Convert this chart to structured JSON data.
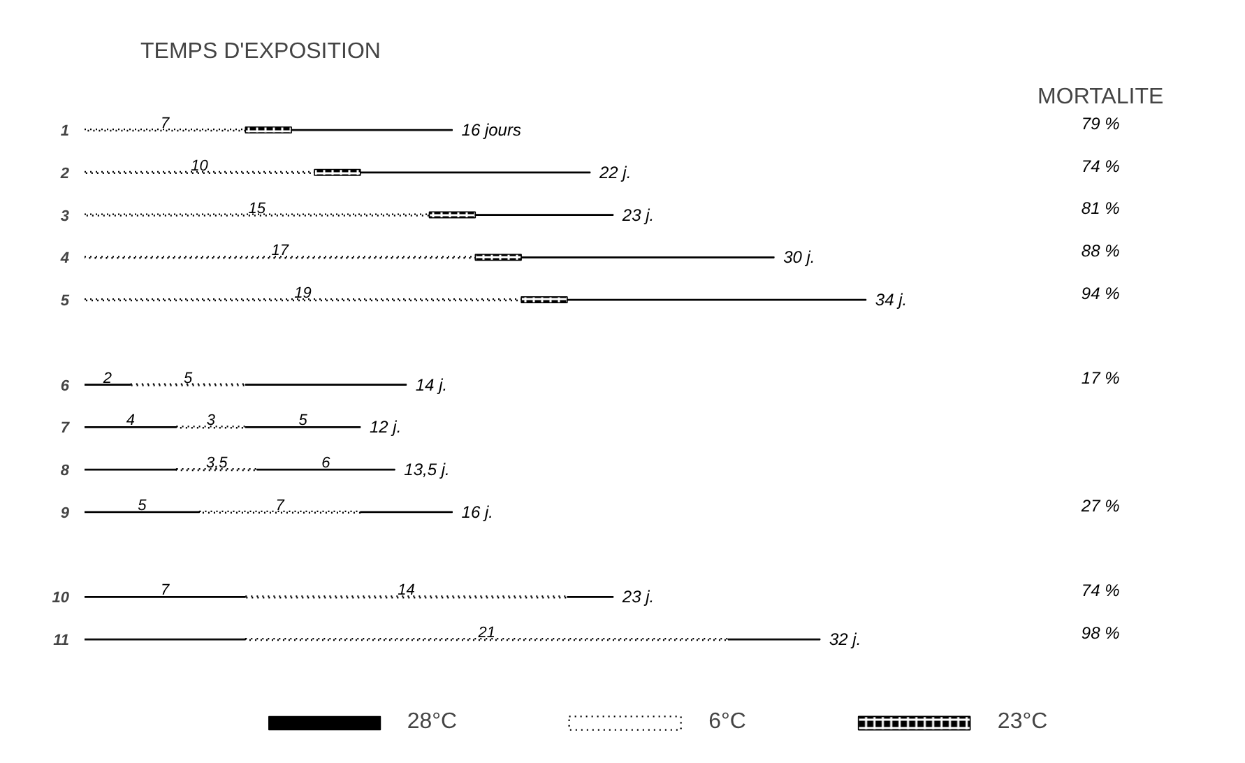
{
  "chart_data": {
    "type": "bar",
    "orientation": "horizontal",
    "stacked": true,
    "title": "TEMPS D'EXPOSITION",
    "categories": [
      "1",
      "2",
      "3",
      "4",
      "5",
      null,
      "6",
      "7",
      "8",
      "9",
      null,
      "10",
      "11"
    ],
    "tick_labels": "y",
    "legend": "bottom",
    "series": [
      {
        "name": "28°C",
        "color": "#000000",
        "line_style": "solid",
        "values": [
          null,
          null,
          null,
          null,
          null,
          null,
          2,
          4,
          4,
          5,
          null,
          7,
          7
        ],
        "value_labels": [
          null,
          null,
          null,
          null,
          null,
          null,
          "2",
          "4",
          null,
          "5",
          null,
          "7",
          null
        ]
      },
      {
        "name": "6°C",
        "color": "#000000",
        "line_style": "dotted",
        "values": [
          7,
          10,
          15,
          17,
          19,
          null,
          5,
          3,
          3.5,
          7,
          null,
          14,
          21
        ],
        "value_labels": [
          "7",
          "10",
          "15",
          "17",
          "19",
          null,
          "5",
          "3",
          "3,5",
          "7",
          null,
          "14",
          "21"
        ]
      },
      {
        "name": "23°C",
        "color": "#000000",
        "marker": "cross",
        "values": [
          2,
          2,
          2,
          2,
          2,
          null,
          null,
          null,
          null,
          null,
          null,
          null,
          null
        ]
      },
      {
        "color": "#000000",
        "line_style": "solid",
        "values": [
          7,
          10,
          6,
          11,
          13,
          null,
          7,
          5,
          6,
          4,
          null,
          2,
          4
        ],
        "value_labels": [
          null,
          null,
          null,
          null,
          null,
          null,
          null,
          "5",
          "6",
          null,
          null,
          null,
          null
        ]
      }
    ],
    "totals": [
      "16 jours",
      "22 j.",
      "23 j.",
      "30 j.",
      "34 j.",
      null,
      "14 j.",
      "12 j.",
      "13,5 j.",
      "16 j.",
      null,
      "23 j.",
      "32 j."
    ],
    "annotations": [
      "MORTALITE"
    ],
    "y2_categories": [
      "79 %",
      "74 %",
      "81 %",
      "88 %",
      "94 %",
      null,
      "17 %",
      null,
      null,
      "27 %",
      null,
      "74 %",
      "98 %"
    ]
  }
}
